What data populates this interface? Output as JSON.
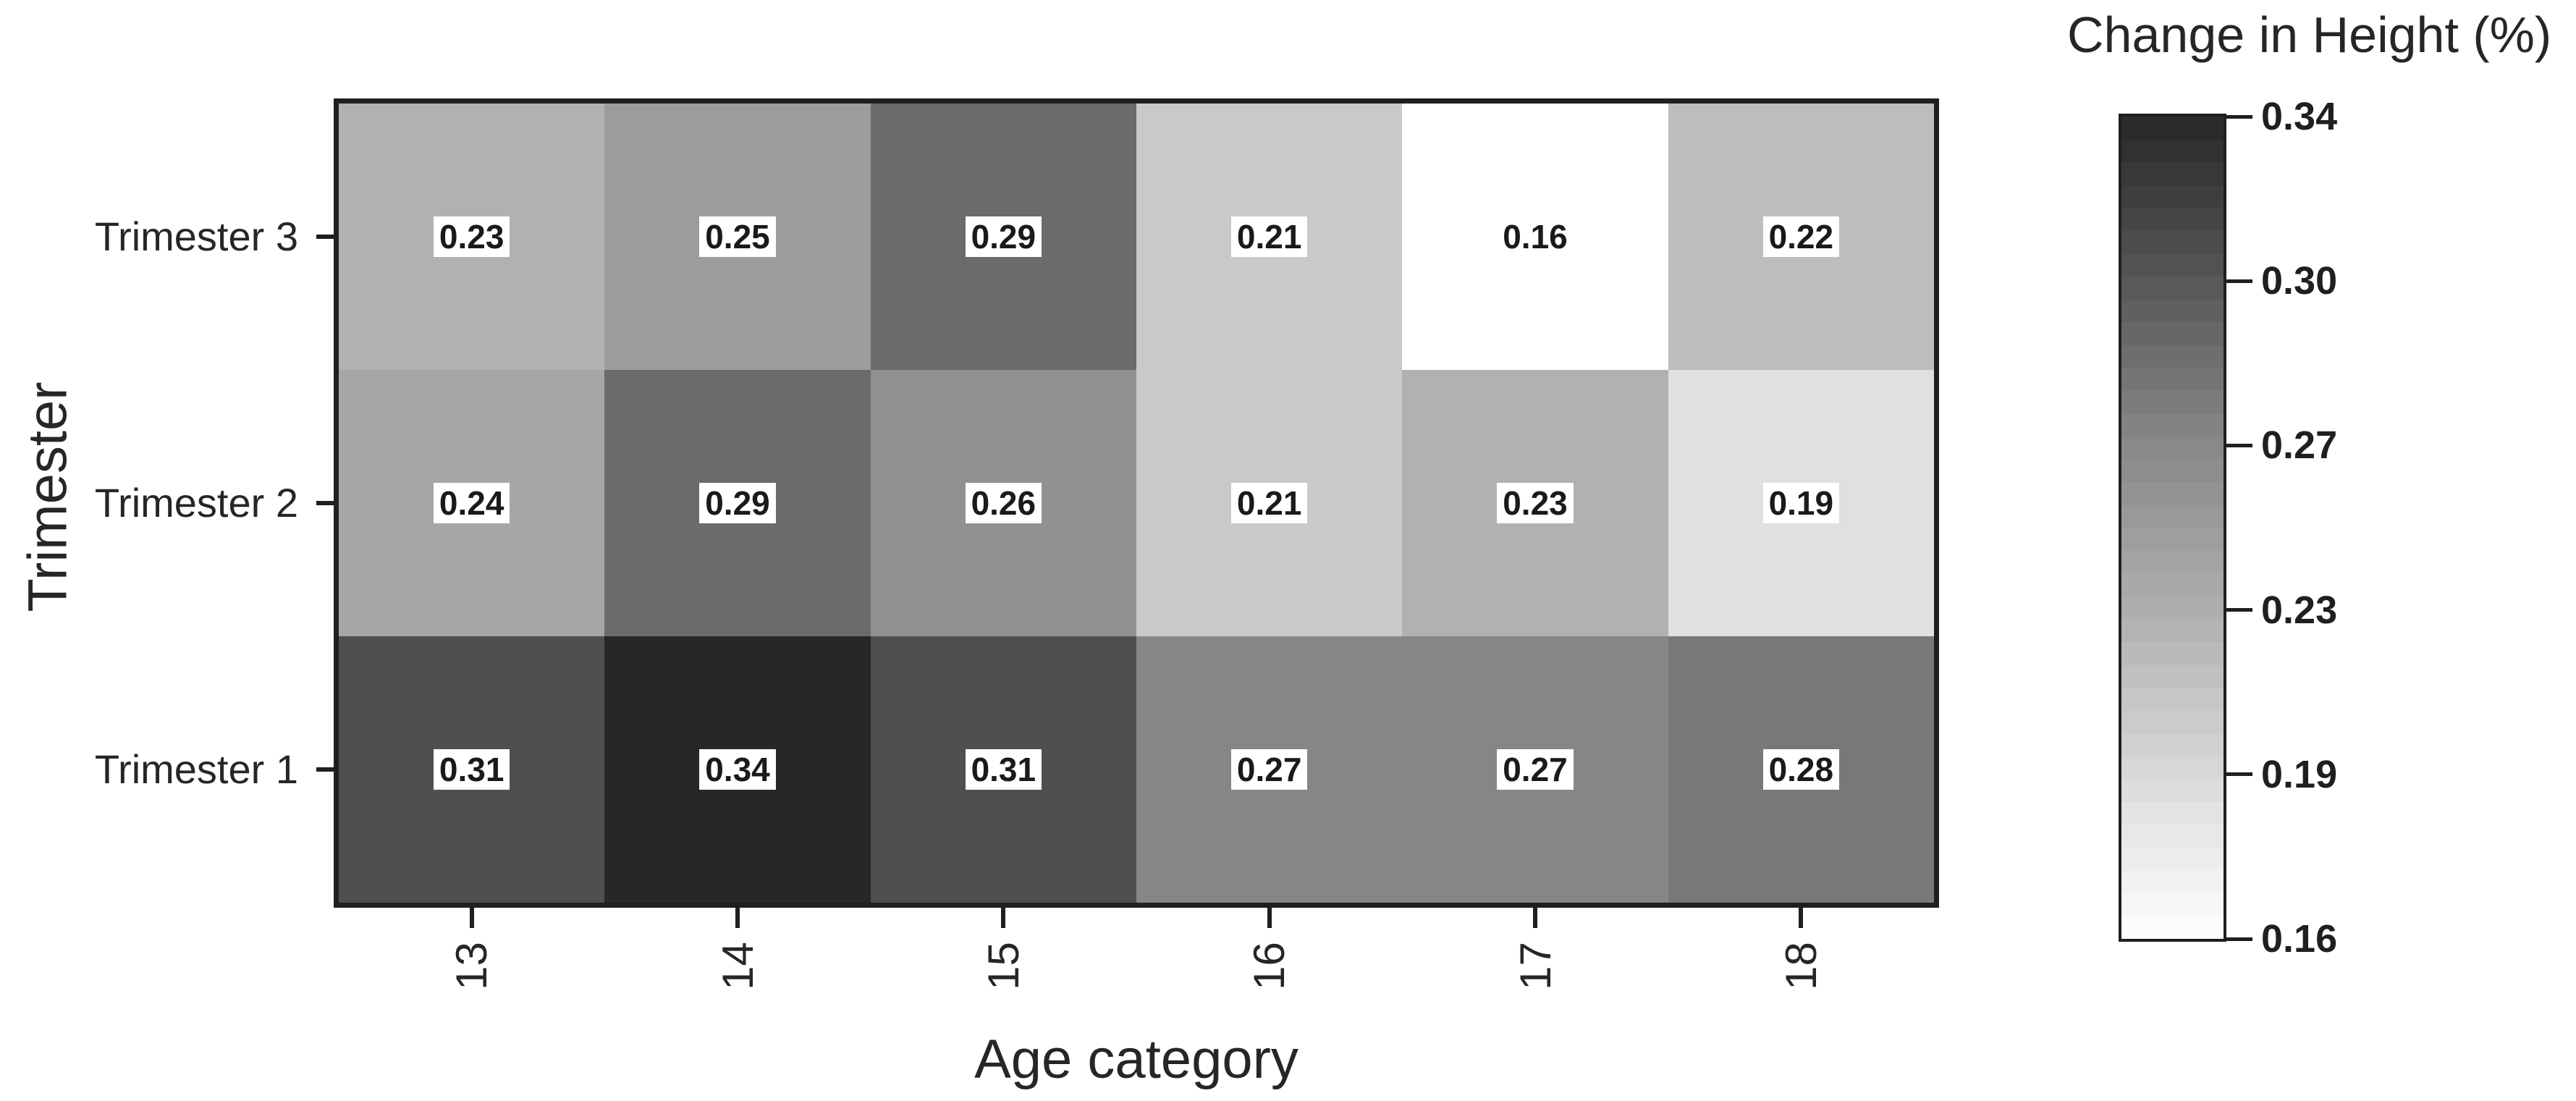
{
  "figure": {
    "background": "#ffffff",
    "axis_color": "#1f1f1f",
    "text_color": "#262626"
  },
  "chart_data": {
    "type": "heatmap",
    "xlabel": "Age category",
    "ylabel": "Trimester",
    "x_categories": [
      "13",
      "14",
      "15",
      "16",
      "17",
      "18"
    ],
    "y_categories_top_to_bottom": [
      "Trimester 3",
      "Trimester 2",
      "Trimester 1"
    ],
    "rows": [
      {
        "label": "Trimester 3",
        "values": [
          0.23,
          0.25,
          0.29,
          0.21,
          0.16,
          0.22
        ]
      },
      {
        "label": "Trimester 2",
        "values": [
          0.24,
          0.29,
          0.26,
          0.21,
          0.23,
          0.19
        ]
      },
      {
        "label": "Trimester 1",
        "values": [
          0.31,
          0.34,
          0.31,
          0.27,
          0.27,
          0.28
        ]
      }
    ],
    "value_decimals": 2,
    "annotation_style": {
      "text_color": "#1a1a1a",
      "box_color": "#ffffff",
      "bold": true
    },
    "colorbar": {
      "title": "Change in Height (%)",
      "tick_labels": [
        "0.34",
        "0.30",
        "0.27",
        "0.23",
        "0.19",
        "0.16"
      ],
      "vmin": 0.16,
      "vmax": 0.34,
      "bands": 36,
      "position": "right"
    },
    "colormap_stops": [
      {
        "v": 0.16,
        "c": "#ffffff"
      },
      {
        "v": 0.19,
        "c": "#e0e0e0"
      },
      {
        "v": 0.23,
        "c": "#b1b1b1"
      },
      {
        "v": 0.27,
        "c": "#868686"
      },
      {
        "v": 0.31,
        "c": "#4f4f4f"
      },
      {
        "v": 0.34,
        "c": "#272727"
      }
    ],
    "grid": false,
    "legend_position": "right"
  }
}
